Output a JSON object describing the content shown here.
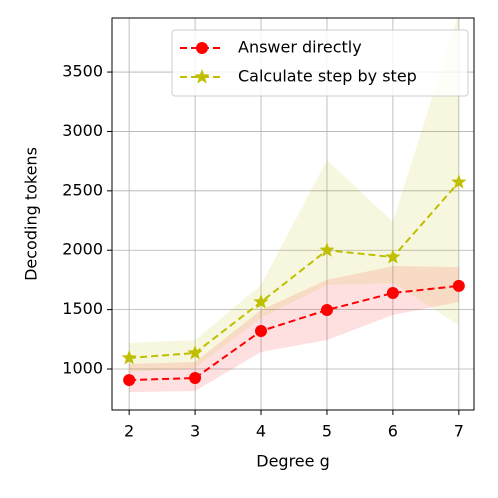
{
  "chart_data": {
    "type": "line",
    "xlabel": "Degree g",
    "ylabel": "Decoding tokens",
    "x": [
      2,
      3,
      4,
      5,
      6,
      7
    ],
    "series": [
      {
        "name": "Answer directly",
        "color": "#ff0000",
        "marker": "circle",
        "values": [
          907,
          924,
          1320,
          1497,
          1640,
          1700
        ],
        "lower": [
          806,
          815,
          1143,
          1244,
          1455,
          1564
        ],
        "upper": [
          1042,
          1059,
          1497,
          1750,
          1867,
          1858
        ]
      },
      {
        "name": "Calculate step by step",
        "color": "#bfbf00",
        "marker": "star",
        "values": [
          1093,
          1135,
          1564,
          2000,
          1942,
          2573
        ],
        "lower": [
          975,
          1008,
          1429,
          1707,
          1724,
          1370
        ],
        "upper": [
          1219,
          1244,
          1707,
          2760,
          2239,
          4000
        ]
      }
    ],
    "xlim": [
      1.74,
      7.23
    ],
    "xticks": [
      2,
      3,
      4,
      5,
      6,
      7
    ],
    "ylim": [
      655,
      3955
    ],
    "yticks": [
      1000,
      1500,
      2000,
      2500,
      3000,
      3500
    ],
    "grid": true,
    "legend": "upper right"
  }
}
